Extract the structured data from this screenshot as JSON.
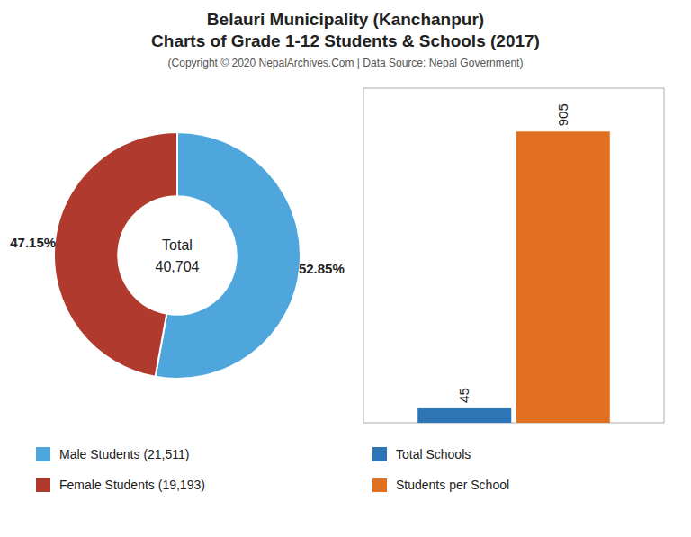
{
  "chart_data": [
    {
      "type": "pie",
      "title": "Belauri Municipality (Kanchanpur)\nCharts of Grade 1-12 Students & Schools (2017)",
      "subtitle": "(Copyright © 2020 NepalArchives.Com | Data Source: Nepal Government)",
      "categories": [
        "Male Students (21,511)",
        "Female Students (19,193)"
      ],
      "values": [
        52.85,
        47.15
      ],
      "value_labels": [
        "52.85%",
        "47.15%"
      ],
      "colors": [
        "#4EA6DC",
        "#B03A2E"
      ],
      "data_labels": true,
      "annotations": [
        "Total",
        "40,704"
      ],
      "legend": "bottom"
    },
    {
      "type": "bar",
      "categories": [
        "Total Schools",
        "Students per School"
      ],
      "values": [
        45,
        905
      ],
      "colors": [
        "#2E75B6",
        "#E07020"
      ],
      "ylim": [
        0,
        1040
      ],
      "data_labels": true,
      "tick_labels": false,
      "legend": "bottom"
    }
  ]
}
